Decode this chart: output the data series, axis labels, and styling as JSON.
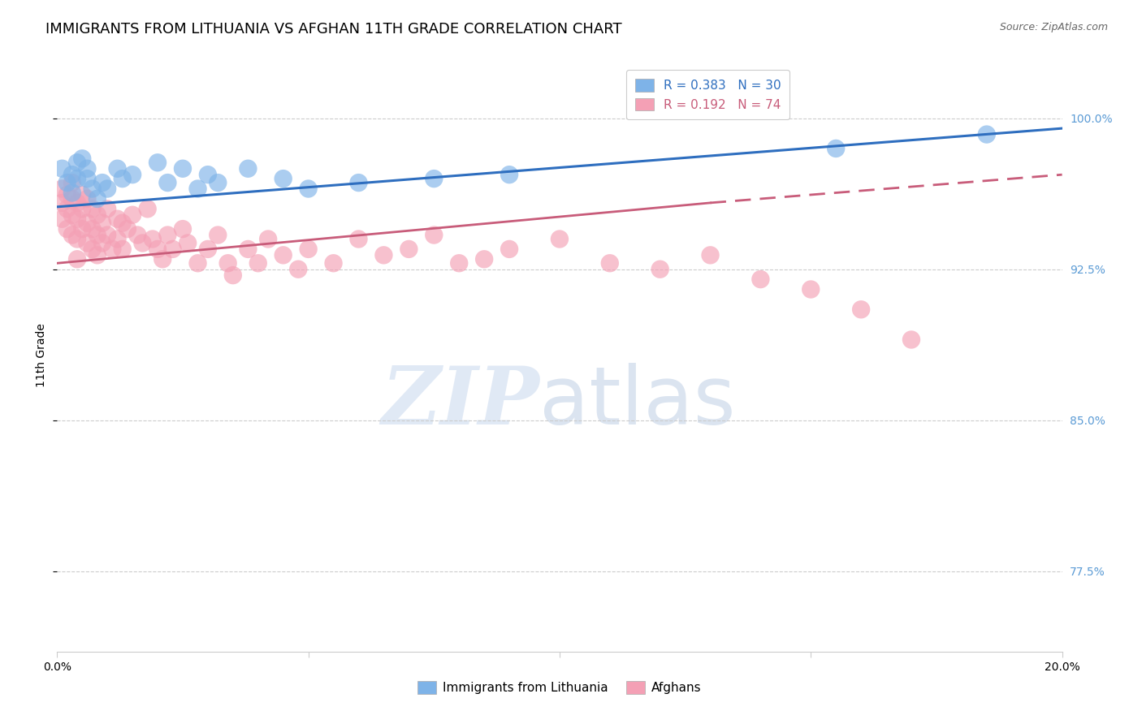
{
  "title": "IMMIGRANTS FROM LITHUANIA VS AFGHAN 11TH GRADE CORRELATION CHART",
  "source": "Source: ZipAtlas.com",
  "ylabel": "11th Grade",
  "ytick_values": [
    1.0,
    0.925,
    0.85,
    0.775
  ],
  "xlim": [
    0.0,
    0.2
  ],
  "ylim": [
    0.735,
    1.03
  ],
  "blue_R": 0.383,
  "blue_N": 30,
  "pink_R": 0.192,
  "pink_N": 74,
  "blue_scatter_x": [
    0.001,
    0.002,
    0.003,
    0.003,
    0.004,
    0.004,
    0.005,
    0.006,
    0.006,
    0.007,
    0.008,
    0.009,
    0.01,
    0.012,
    0.013,
    0.015,
    0.02,
    0.022,
    0.025,
    0.028,
    0.03,
    0.032,
    0.038,
    0.045,
    0.05,
    0.06,
    0.075,
    0.09,
    0.155,
    0.185
  ],
  "blue_scatter_y": [
    0.975,
    0.968,
    0.972,
    0.963,
    0.97,
    0.978,
    0.98,
    0.975,
    0.97,
    0.965,
    0.96,
    0.968,
    0.965,
    0.975,
    0.97,
    0.972,
    0.978,
    0.968,
    0.975,
    0.965,
    0.972,
    0.968,
    0.975,
    0.97,
    0.965,
    0.968,
    0.97,
    0.972,
    0.985,
    0.992
  ],
  "pink_scatter_x": [
    0.001,
    0.001,
    0.001,
    0.002,
    0.002,
    0.002,
    0.003,
    0.003,
    0.003,
    0.003,
    0.004,
    0.004,
    0.004,
    0.004,
    0.005,
    0.005,
    0.005,
    0.006,
    0.006,
    0.006,
    0.007,
    0.007,
    0.007,
    0.008,
    0.008,
    0.008,
    0.009,
    0.009,
    0.01,
    0.01,
    0.011,
    0.012,
    0.012,
    0.013,
    0.013,
    0.014,
    0.015,
    0.016,
    0.017,
    0.018,
    0.019,
    0.02,
    0.021,
    0.022,
    0.023,
    0.025,
    0.026,
    0.028,
    0.03,
    0.032,
    0.034,
    0.035,
    0.038,
    0.04,
    0.042,
    0.045,
    0.048,
    0.05,
    0.055,
    0.06,
    0.065,
    0.07,
    0.075,
    0.08,
    0.085,
    0.09,
    0.1,
    0.11,
    0.12,
    0.13,
    0.14,
    0.15,
    0.16,
    0.17
  ],
  "pink_scatter_y": [
    0.965,
    0.958,
    0.95,
    0.962,
    0.955,
    0.945,
    0.968,
    0.96,
    0.952,
    0.942,
    0.958,
    0.95,
    0.94,
    0.93,
    0.962,
    0.955,
    0.945,
    0.96,
    0.948,
    0.938,
    0.955,
    0.945,
    0.935,
    0.952,
    0.942,
    0.932,
    0.948,
    0.938,
    0.955,
    0.942,
    0.935,
    0.95,
    0.94,
    0.948,
    0.935,
    0.945,
    0.952,
    0.942,
    0.938,
    0.955,
    0.94,
    0.935,
    0.93,
    0.942,
    0.935,
    0.945,
    0.938,
    0.928,
    0.935,
    0.942,
    0.928,
    0.922,
    0.935,
    0.928,
    0.94,
    0.932,
    0.925,
    0.935,
    0.928,
    0.94,
    0.932,
    0.935,
    0.942,
    0.928,
    0.93,
    0.935,
    0.94,
    0.928,
    0.925,
    0.932,
    0.92,
    0.915,
    0.905,
    0.89
  ],
  "blue_line": [
    0.0,
    0.2,
    0.956,
    0.995
  ],
  "pink_line_solid": [
    0.0,
    0.13,
    0.928,
    0.958
  ],
  "pink_line_dashed": [
    0.13,
    0.2,
    0.958,
    0.972
  ],
  "blue_color": "#7EB3E8",
  "pink_color": "#F4A0B5",
  "blue_line_color": "#2E6EBF",
  "pink_line_color": "#C85C7A",
  "grid_color": "#CCCCCC",
  "watermark_zip": "ZIP",
  "watermark_atlas": "atlas",
  "legend_blue_text": "R = 0.383   N = 30",
  "legend_pink_text": "R = 0.192   N = 74",
  "legend_label_blue": "Immigrants from Lithuania",
  "legend_label_pink": "Afghans",
  "title_fontsize": 13,
  "axis_label_fontsize": 10,
  "tick_fontsize": 10,
  "right_tick_color": "#5B9BD5"
}
